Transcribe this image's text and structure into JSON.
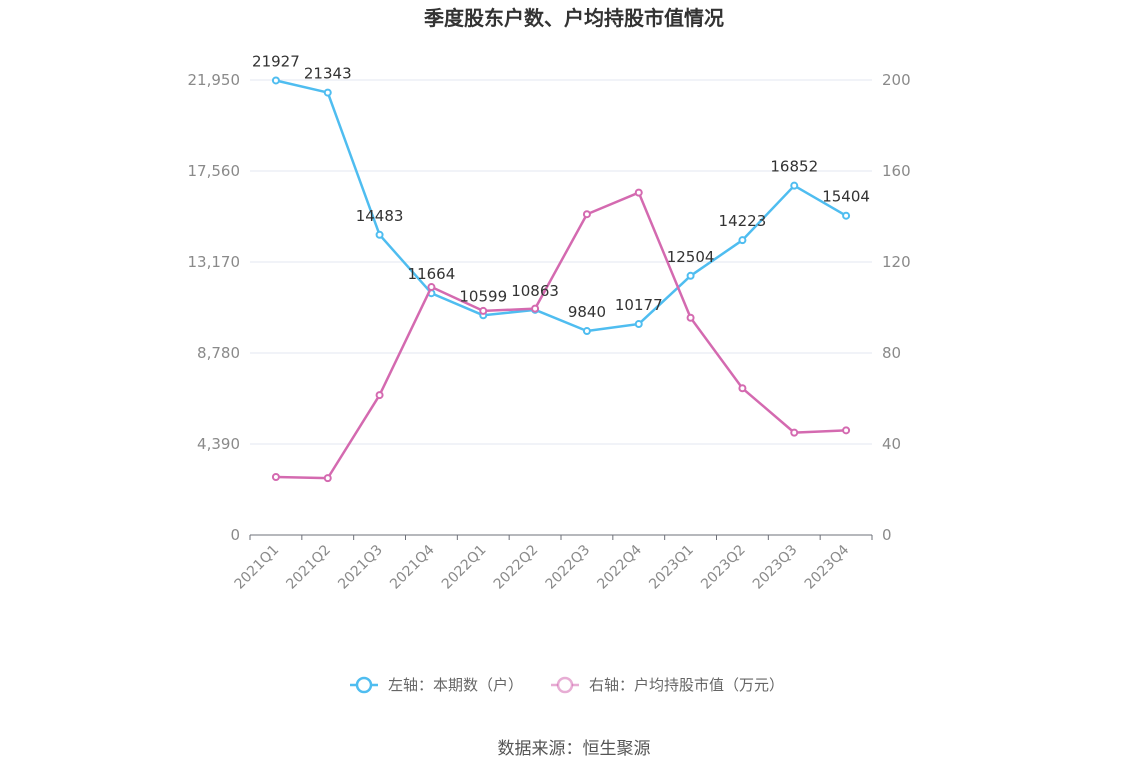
{
  "chart_data": {
    "type": "line",
    "title": "季度股东户数、户均持股市值情况",
    "categories": [
      "2021Q1",
      "2021Q2",
      "2021Q3",
      "2021Q4",
      "2022Q1",
      "2022Q2",
      "2022Q3",
      "2022Q4",
      "2023Q1",
      "2023Q2",
      "2023Q3",
      "2023Q4"
    ],
    "left_axis": {
      "min": 0,
      "max": 21950,
      "ticks": [
        "0",
        "4,390",
        "8,780",
        "13,170",
        "17,560",
        "21,950"
      ],
      "tick_values": [
        0,
        4390,
        8780,
        13170,
        17560,
        21950
      ]
    },
    "right_axis": {
      "min": 0,
      "max": 200,
      "ticks": [
        "0",
        "40",
        "80",
        "120",
        "160",
        "200"
      ],
      "tick_values": [
        0,
        40,
        80,
        120,
        160,
        200
      ]
    },
    "series": [
      {
        "name": "左轴：本期数（户）",
        "axis": "left",
        "color": "#4fbdf0",
        "values": [
          21927,
          21343,
          14483,
          11664,
          10599,
          10863,
          9840,
          10177,
          12504,
          14223,
          16852,
          15404
        ],
        "labels": [
          "21927",
          "21343",
          "14483",
          "11664",
          "10599",
          "10863",
          "9840",
          "10177",
          "12504",
          "14223",
          "16852",
          "15404"
        ]
      },
      {
        "name": "右轴：户均持股市值（万元）",
        "axis": "right",
        "color": "#d46ab0",
        "values": [
          25.5,
          25.0,
          61.5,
          109.0,
          98.5,
          99.5,
          141.0,
          150.5,
          95.5,
          64.5,
          45.0,
          46.0
        ]
      }
    ],
    "grid": true,
    "legend_position": "bottom"
  },
  "source": "数据来源：恒生聚源"
}
